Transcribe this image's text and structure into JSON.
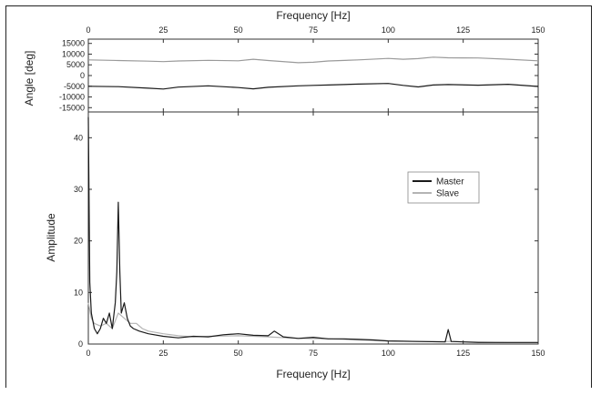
{
  "chart_data": [
    {
      "type": "line",
      "panel": "phase",
      "xlabel": "Frequency [Hz]",
      "ylabel": "Angle [deg]",
      "xlim": [
        0,
        150
      ],
      "ylim": [
        -17000,
        17000
      ],
      "x_ticks": [
        "0",
        "25",
        "50",
        "75",
        "100",
        "125",
        "150"
      ],
      "y_ticks": [
        "15000",
        "10000",
        "5000",
        "0",
        "-5000",
        "-10000",
        "-15000"
      ],
      "x_axis_position": "top",
      "series": [
        {
          "name": "Slave",
          "color": "#9a9a9a",
          "x": [
            0,
            10,
            20,
            25,
            30,
            40,
            50,
            55,
            60,
            70,
            75,
            80,
            90,
            100,
            105,
            110,
            115,
            120,
            130,
            140,
            150
          ],
          "y": [
            7300,
            7000,
            6700,
            6500,
            6800,
            7100,
            6900,
            7600,
            7000,
            6000,
            6200,
            6800,
            7300,
            8000,
            7600,
            7900,
            8600,
            8300,
            8200,
            7600,
            6900
          ]
        },
        {
          "name": "Master",
          "color": "#1a1a1a",
          "x": [
            0,
            10,
            20,
            25,
            30,
            40,
            50,
            55,
            60,
            70,
            75,
            80,
            90,
            100,
            105,
            110,
            115,
            120,
            130,
            140,
            150
          ],
          "y": [
            -5000,
            -5200,
            -5900,
            -6300,
            -5400,
            -4800,
            -5600,
            -6200,
            -5500,
            -4800,
            -4600,
            -4400,
            -4000,
            -3700,
            -4600,
            -5300,
            -4400,
            -4200,
            -4500,
            -4100,
            -5100
          ]
        }
      ]
    },
    {
      "type": "line",
      "panel": "amplitude",
      "xlabel": "Frequency [Hz]",
      "ylabel": "Amplitude",
      "xlim": [
        0,
        150
      ],
      "ylim": [
        0,
        45
      ],
      "x_ticks": [
        "0",
        "25",
        "50",
        "75",
        "100",
        "125",
        "150"
      ],
      "y_ticks": [
        "0",
        "10",
        "20",
        "30",
        "40"
      ],
      "legend_position": "right",
      "series": [
        {
          "name": "Master",
          "color": "#1a1a1a",
          "x": [
            0,
            0.5,
            1,
            2,
            3,
            4,
            5,
            6,
            7,
            8,
            9,
            9.5,
            10,
            10.5,
            11,
            12,
            13,
            14,
            15,
            17,
            20,
            25,
            30,
            35,
            40,
            45,
            50,
            55,
            60,
            62,
            65,
            70,
            75,
            80,
            85,
            90,
            95,
            100,
            110,
            119,
            120,
            121,
            125,
            130,
            140,
            150
          ],
          "y": [
            44,
            12,
            6,
            3,
            2,
            3,
            5,
            4,
            6,
            3,
            8,
            14,
            27.5,
            14,
            6,
            8,
            5,
            3.5,
            3,
            2.5,
            2,
            1.5,
            1.2,
            1.5,
            1.4,
            1.8,
            2,
            1.7,
            1.6,
            2.5,
            1.4,
            1.1,
            1.3,
            1.0,
            1.0,
            0.9,
            0.8,
            0.6,
            0.5,
            0.4,
            2.8,
            0.5,
            0.4,
            0.3,
            0.3,
            0.3
          ]
        },
        {
          "name": "Slave",
          "color": "#b4b4b4",
          "x": [
            0,
            1,
            2,
            4,
            6,
            8,
            10,
            12,
            14,
            16,
            18,
            20,
            25,
            30,
            35,
            40,
            50,
            60,
            70,
            80,
            90,
            100,
            110,
            120,
            130,
            140,
            150
          ],
          "y": [
            8,
            5,
            4,
            3.5,
            4,
            3,
            6,
            5,
            4,
            4,
            3,
            2.5,
            2,
            1.6,
            1.4,
            1.5,
            1.6,
            1.4,
            1.1,
            1.0,
            0.8,
            0.6,
            0.5,
            0.5,
            0.4,
            0.3,
            0.3
          ]
        }
      ]
    }
  ]
}
